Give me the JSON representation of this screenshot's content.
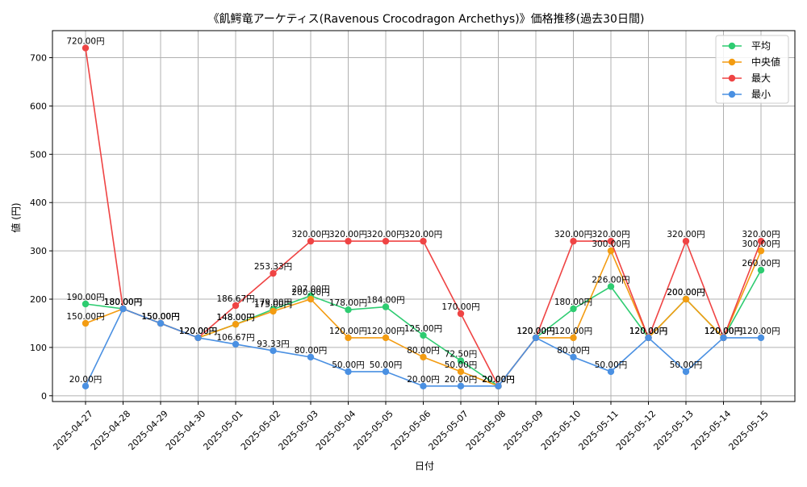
{
  "chart_data": {
    "type": "line",
    "title": "《飢鰐竜アーケティス(Ravenous Crocodragon Archethys)》価格推移(過去30日間)",
    "xlabel": "日付",
    "ylabel": "値 (円)",
    "ylim": [
      -12,
      756
    ],
    "yticks": [
      0,
      100,
      200,
      300,
      400,
      500,
      600,
      700
    ],
    "grid": true,
    "legend_position": "top-right",
    "categories": [
      "2025-04-27",
      "2025-04-28",
      "2025-04-29",
      "2025-04-30",
      "2025-05-01",
      "2025-05-02",
      "2025-05-03",
      "2025-05-04",
      "2025-05-05",
      "2025-05-06",
      "2025-05-07",
      "2025-05-08",
      "2025-05-09",
      "2025-05-10",
      "2025-05-11",
      "2025-05-12",
      "2025-05-13",
      "2025-05-14",
      "2025-05-15"
    ],
    "series": [
      {
        "name": "平均",
        "color": "#2ecc71",
        "values": [
          190.0,
          180.0,
          150.0,
          120.0,
          148.0,
          179.0,
          207.0,
          178.0,
          184.0,
          125.0,
          72.5,
          20.0,
          120.0,
          180.0,
          226.0,
          120.0,
          200.0,
          120.0,
          260.0
        ]
      },
      {
        "name": "中央値",
        "color": "#f39c12",
        "values": [
          150.0,
          180.0,
          150.0,
          120.0,
          148.0,
          175.0,
          200.0,
          120.0,
          120.0,
          80.0,
          50.0,
          20.0,
          120.0,
          120.0,
          300.0,
          120.0,
          200.0,
          120.0,
          300.0
        ]
      },
      {
        "name": "最大",
        "color": "#ef4444",
        "values": [
          720.0,
          180.0,
          150.0,
          120.0,
          186.67,
          253.33,
          320.0,
          320.0,
          320.0,
          320.0,
          170.0,
          20.0,
          120.0,
          320.0,
          320.0,
          120.0,
          320.0,
          120.0,
          320.0
        ]
      },
      {
        "name": "最小",
        "color": "#4a90e2",
        "values": [
          20.0,
          180.0,
          150.0,
          120.0,
          106.67,
          93.33,
          80.0,
          50.0,
          50.0,
          20.0,
          20.0,
          20.0,
          120.0,
          80.0,
          50.0,
          120.0,
          50.0,
          120.0,
          120.0
        ]
      }
    ],
    "value_suffix": "円"
  }
}
